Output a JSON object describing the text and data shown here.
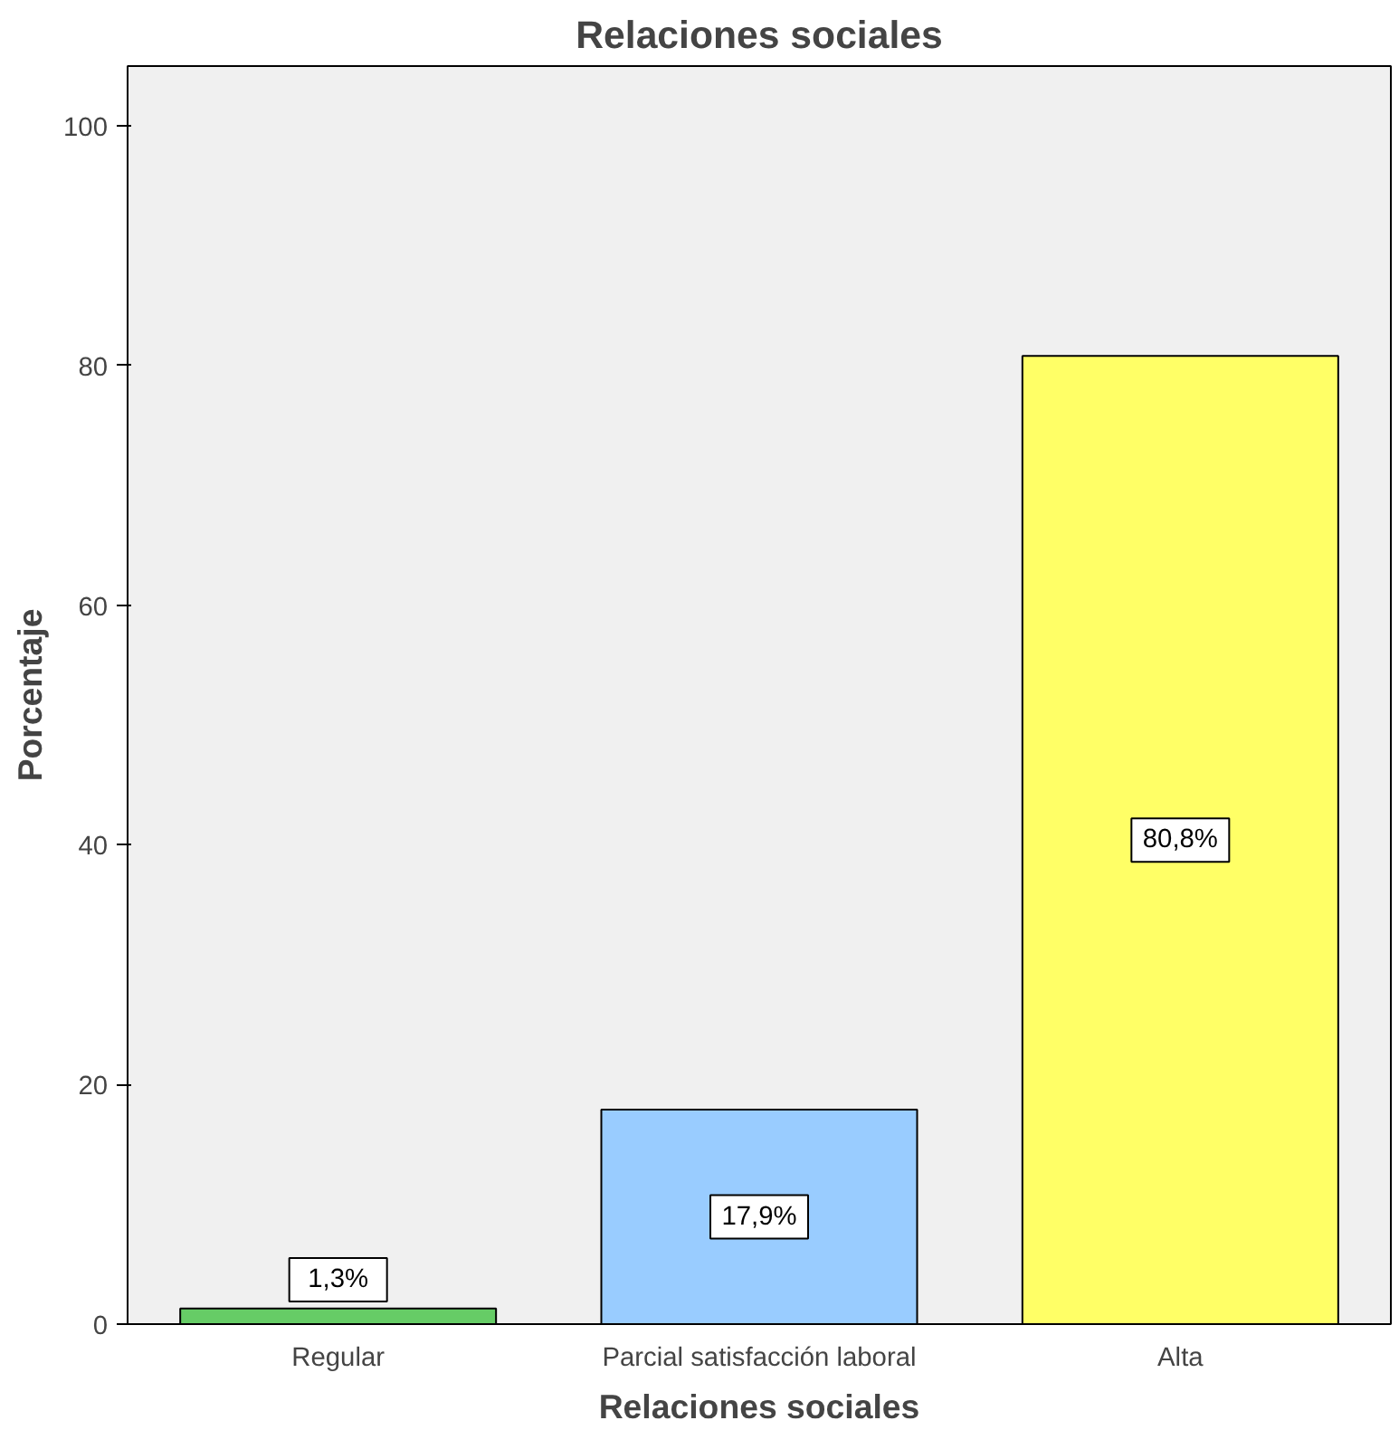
{
  "chart_data": {
    "type": "bar",
    "title": "Relaciones sociales",
    "xlabel": "Relaciones sociales",
    "ylabel": "Porcentaje",
    "categories": [
      "Regular",
      "Parcial satisfacción laboral",
      "Alta"
    ],
    "values": [
      1.3,
      17.9,
      80.8
    ],
    "colors": [
      "#66cc66",
      "#99ccff",
      "#ffff66"
    ],
    "value_labels": [
      "1,3%",
      "17,9%",
      "80,8%"
    ],
    "ylim": [
      0,
      105
    ],
    "yticks": [
      0,
      20,
      40,
      60,
      80,
      100
    ],
    "grid": false
  }
}
